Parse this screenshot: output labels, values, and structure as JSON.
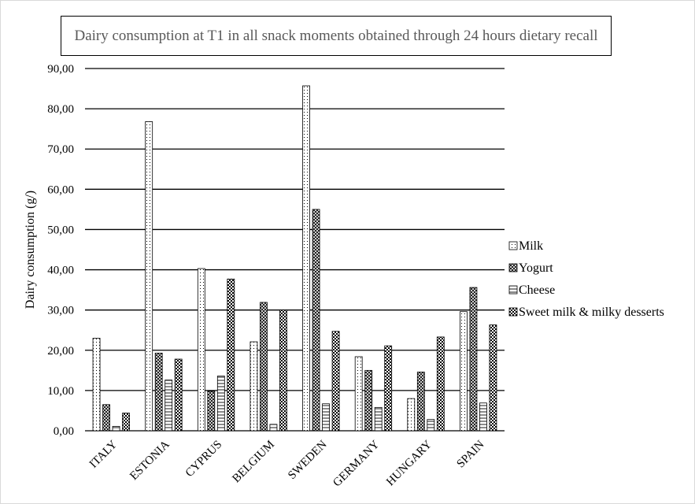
{
  "chart_data": {
    "type": "bar",
    "title": "Dairy consumption at T1 in all snack moments obtained through 24 hours dietary recall",
    "ylabel": "Dairy consumption (g/)",
    "xlabel": "",
    "ylim": [
      0,
      90
    ],
    "y_ticks": [
      "0,00",
      "10,00",
      "20,00",
      "30,00",
      "40,00",
      "50,00",
      "60,00",
      "70,00",
      "80,00",
      "90,00"
    ],
    "categories": [
      "ITALY",
      "ESTONIA",
      "CYPRUS",
      "BELGIUM",
      "SWEDEN",
      "GERMANY",
      "HUNGARY",
      "SPAIN"
    ],
    "series": [
      {
        "name": "Milk",
        "pattern": "dots",
        "values": [
          23.0,
          76.8,
          40.3,
          22.1,
          85.7,
          18.4,
          8.0,
          29.6
        ]
      },
      {
        "name": "Yogurt",
        "pattern": "crosshatch",
        "values": [
          6.5,
          19.3,
          9.8,
          31.9,
          55.0,
          15.0,
          14.6,
          35.6
        ]
      },
      {
        "name": "Cheese",
        "pattern": "horizontal",
        "values": [
          1.1,
          12.6,
          13.6,
          1.6,
          6.7,
          5.8,
          2.8,
          6.9
        ]
      },
      {
        "name": "Sweet milk & milky desserts",
        "pattern": "checker",
        "values": [
          4.4,
          17.8,
          37.7,
          30.0,
          24.7,
          21.1,
          23.3,
          26.3
        ]
      }
    ],
    "grid": true,
    "legend": "right"
  }
}
